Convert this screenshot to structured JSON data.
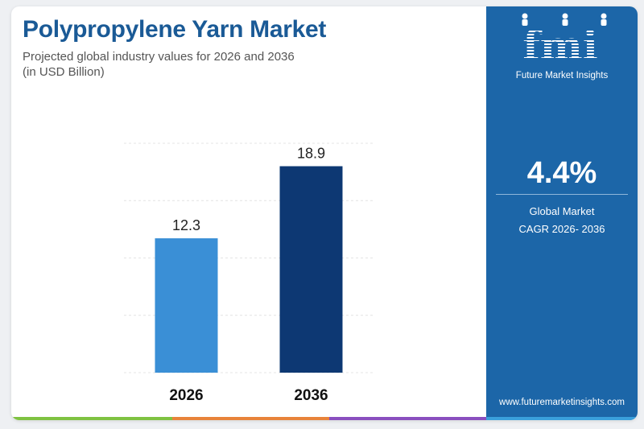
{
  "header": {
    "title": "Polypropylene Yarn Market",
    "subtitle_line1": "Projected global industry values for 2026 and 2036",
    "subtitle_line2": "(in USD Billion)"
  },
  "chart_data": {
    "type": "bar",
    "categories": [
      "2026",
      "2036"
    ],
    "values": [
      12.3,
      18.9
    ],
    "value_labels": [
      "12.3",
      "18.9"
    ],
    "title": "Polypropylene Yarn Market",
    "subtitle": "Projected global industry values for 2026 and 2036 (in USD Billion)",
    "xlabel": "",
    "ylabel": "",
    "ylim": [
      0,
      21
    ],
    "grid": true,
    "legend": "none",
    "bar_colors": [
      "#3a8fd6",
      "#0d3873"
    ]
  },
  "sidebar": {
    "logo_text": "fmi",
    "brand_name": "Future Market Insights",
    "cagr_value": "4.4%",
    "cagr_label_line1": "Global Market",
    "cagr_label_line2": "CAGR 2026- 2036",
    "website": "www.futuremarketinsights.com"
  },
  "colors": {
    "title": "#1a5a96",
    "sidebar_bg": "#1c66a8",
    "bar_2026": "#3a8fd6",
    "bar_2036": "#0d3873",
    "stripe": [
      "#7fc241",
      "#f2a33a",
      "#e05b2b",
      "#8a4fbf",
      "#3aa0dc"
    ]
  }
}
